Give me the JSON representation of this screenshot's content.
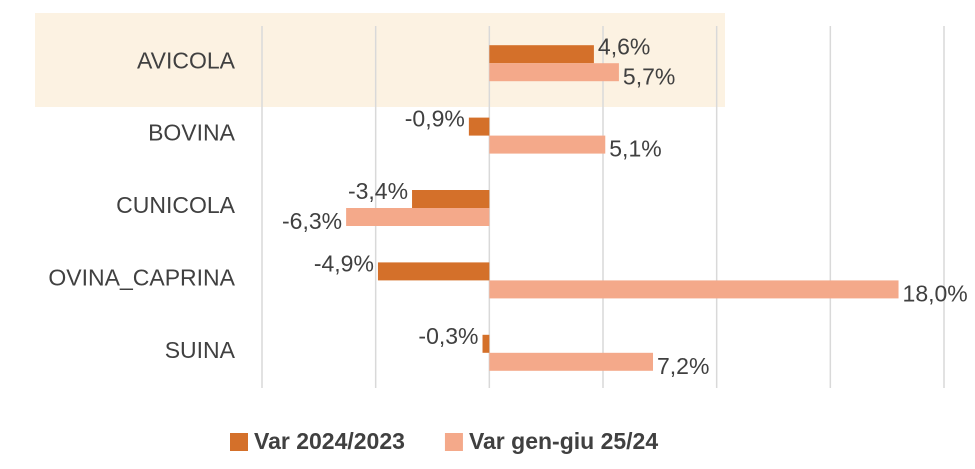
{
  "chart_data": {
    "type": "hbar",
    "categories": [
      "AVICOLA",
      "BOVINA",
      "CUNICOLA",
      "OVINA_CAPRINA",
      "SUINA"
    ],
    "series": [
      {
        "name": "Var 2024/2023",
        "color": "#d4702a",
        "values": [
          4.6,
          -0.9,
          -3.4,
          -4.9,
          -0.3
        ],
        "value_labels": [
          "4,6%",
          "-0,9%",
          "-3,4%",
          "-4,9%",
          "-0,3%"
        ]
      },
      {
        "name": "Var gen-giu 25/24",
        "color": "#f4a98a",
        "values": [
          5.7,
          5.1,
          -6.3,
          18.0,
          7.2
        ],
        "value_labels": [
          "5,7%",
          "5,1%",
          "-6,3%",
          "18,0%",
          "7,2%"
        ]
      }
    ],
    "xlim": [
      -10,
      20
    ],
    "xticks": [
      -10,
      -5,
      0,
      5,
      10,
      15,
      20
    ],
    "grid": true,
    "legend": "bottom"
  }
}
